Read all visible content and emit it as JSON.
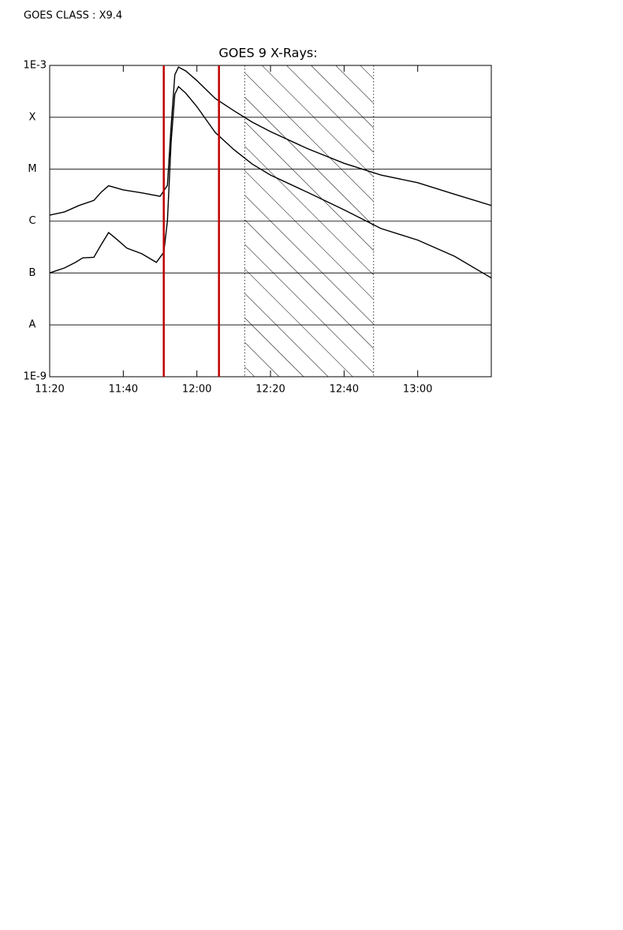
{
  "header": {
    "text": "GOES CLASS : X9.4"
  },
  "chart_data": {
    "type": "line",
    "title": "GOES 9 X-Rays:",
    "xlim": [
      "11:20",
      "13:20"
    ],
    "xticks": [
      "11:20",
      "11:40",
      "12:00",
      "12:20",
      "12:40",
      "13:00"
    ],
    "ylim": [
      1e-09,
      0.001
    ],
    "log_y": true,
    "grid": true,
    "yticks": [
      {
        "value": 0.001,
        "label": "1E-3"
      },
      {
        "value": 0.0001,
        "label": "X"
      },
      {
        "value": 1e-05,
        "label": "M"
      },
      {
        "value": 1e-06,
        "label": "C"
      },
      {
        "value": 1e-07,
        "label": "B"
      },
      {
        "value": 1e-08,
        "label": "A"
      },
      {
        "value": 1e-09,
        "label": "1E-9"
      }
    ],
    "series": [
      {
        "color": "#000000",
        "x": [
          "11:20",
          "11:24",
          "11:28",
          "11:32",
          "11:34",
          "11:36",
          "11:40",
          "11:45",
          "11:50",
          "11:52",
          "11:53",
          "11:54",
          "11:55",
          "11:57",
          "12:00",
          "12:05",
          "12:10",
          "12:15",
          "12:20",
          "12:30",
          "12:40",
          "12:50",
          "13:00",
          "13:10",
          "13:20"
        ],
        "values": [
          1.3e-06,
          1.5e-06,
          2e-06,
          2.5e-06,
          3.6e-06,
          4.8e-06,
          4e-06,
          3.5e-06,
          3e-06,
          4.9e-06,
          6.8e-05,
          0.00066,
          0.00093,
          0.00078,
          0.00051,
          0.00023,
          0.000135,
          8.1e-05,
          5.3e-05,
          2.5e-05,
          1.3e-05,
          7.7e-06,
          5.5e-06,
          3.3e-06,
          2e-06
        ]
      },
      {
        "color": "#000000",
        "x": [
          "11:20",
          "11:24",
          "11:27",
          "11:29",
          "11:32",
          "11:34",
          "11:36",
          "11:38",
          "11:41",
          "11:45",
          "11:49",
          "11:51",
          "11:52",
          "11:53",
          "11:54",
          "11:55",
          "11:57",
          "12:00",
          "12:05",
          "12:10",
          "12:15",
          "12:20",
          "12:30",
          "12:40",
          "12:50",
          "13:00",
          "13:10",
          "13:20"
        ],
        "values": [
          1e-07,
          1.25e-07,
          1.6e-07,
          1.95e-07,
          2e-07,
          3.5e-07,
          6e-07,
          4.6e-07,
          3e-07,
          2.35e-07,
          1.6e-07,
          2.5e-07,
          1e-06,
          3.4e-05,
          0.00028,
          0.00039,
          0.00029,
          0.00016,
          5.1e-05,
          2.4e-05,
          1.26e-05,
          7.7e-06,
          3.6e-06,
          1.65e-06,
          7.2e-07,
          4.3e-07,
          2.1e-07,
          8e-08
        ]
      }
    ],
    "marker_lines": {
      "color": "#c00000",
      "x": [
        "11:51",
        "12:06"
      ]
    },
    "shaded_region": {
      "x": [
        "12:13",
        "12:48"
      ]
    }
  }
}
